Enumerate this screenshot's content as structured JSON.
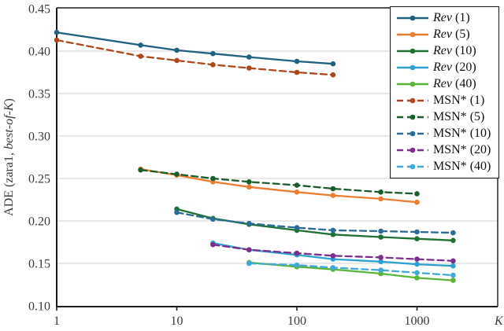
{
  "figure": {
    "background": "#ffffff",
    "frame_color": "#1a1a1a",
    "gridline_color": "#d9d9d9"
  },
  "chart_data": {
    "type": "line",
    "title": "",
    "xlabel": "K",
    "ylabel": "ADE (zara1, best-of-K)",
    "ylabel_parts": {
      "prefix": "ADE (zara1, ",
      "italic": "best-of-K",
      "suffix": ")"
    },
    "x_scale": "log",
    "xlim": [
      1,
      4700
    ],
    "ylim": [
      0.1,
      0.45
    ],
    "x_ticks": [
      1,
      10,
      100,
      1000
    ],
    "y_ticks": [
      0.45,
      0.4,
      0.35,
      0.3,
      0.25,
      0.2,
      0.15,
      0.1
    ],
    "grid": "horizontal",
    "legend_position": "upper right",
    "series": [
      {
        "name": "Rev (1)",
        "family": "Rev",
        "k_label": "(1)",
        "color": "#20617f",
        "dash": false,
        "x": [
          1,
          5,
          10,
          20,
          40,
          100,
          200
        ],
        "y": [
          0.422,
          0.407,
          0.401,
          0.397,
          0.393,
          0.388,
          0.385
        ]
      },
      {
        "name": "Rev (5)",
        "family": "Rev",
        "k_label": "(5)",
        "color": "#ed7d31",
        "dash": false,
        "x": [
          5,
          10,
          20,
          40,
          100,
          200,
          500,
          1000
        ],
        "y": [
          0.261,
          0.254,
          0.246,
          0.24,
          0.234,
          0.23,
          0.226,
          0.222
        ]
      },
      {
        "name": "Rev (10)",
        "family": "Rev",
        "k_label": "(10)",
        "color": "#1e7033",
        "dash": false,
        "x": [
          10,
          20,
          40,
          100,
          200,
          500,
          1000,
          2000
        ],
        "y": [
          0.214,
          0.203,
          0.196,
          0.189,
          0.184,
          0.181,
          0.179,
          0.177
        ]
      },
      {
        "name": "Rev (20)",
        "family": "Rev",
        "k_label": "(20)",
        "color": "#2da2d2",
        "dash": false,
        "x": [
          20,
          40,
          100,
          200,
          500,
          1000,
          2000
        ],
        "y": [
          0.174,
          0.166,
          0.16,
          0.155,
          0.152,
          0.149,
          0.147
        ]
      },
      {
        "name": "Rev (40)",
        "family": "Rev",
        "k_label": "(40)",
        "color": "#5ab438",
        "dash": false,
        "x": [
          40,
          100,
          200,
          500,
          1000,
          2000
        ],
        "y": [
          0.151,
          0.146,
          0.143,
          0.138,
          0.133,
          0.13
        ]
      },
      {
        "name": "MSN* (1)",
        "family": "MSN*",
        "k_label": "(1)",
        "color": "#b0461c",
        "dash": true,
        "x": [
          1,
          5,
          10,
          20,
          40,
          100,
          200
        ],
        "y": [
          0.413,
          0.394,
          0.389,
          0.384,
          0.38,
          0.375,
          0.372
        ]
      },
      {
        "name": "MSN* (5)",
        "family": "MSN*",
        "k_label": "(5)",
        "color": "#1a5c2a",
        "dash": true,
        "x": [
          5,
          10,
          20,
          40,
          100,
          200,
          500,
          1000
        ],
        "y": [
          0.26,
          0.255,
          0.25,
          0.246,
          0.242,
          0.238,
          0.234,
          0.232
        ]
      },
      {
        "name": "MSN* (10)",
        "family": "MSN*",
        "k_label": "(10)",
        "color": "#2a6b97",
        "dash": true,
        "x": [
          10,
          20,
          40,
          100,
          200,
          500,
          1000,
          2000
        ],
        "y": [
          0.21,
          0.202,
          0.197,
          0.192,
          0.189,
          0.188,
          0.187,
          0.186
        ]
      },
      {
        "name": "MSN* (20)",
        "family": "MSN*",
        "k_label": "(20)",
        "color": "#7d2e8d",
        "dash": true,
        "x": [
          20,
          40,
          100,
          200,
          500,
          1000,
          2000
        ],
        "y": [
          0.172,
          0.166,
          0.162,
          0.159,
          0.157,
          0.155,
          0.153
        ]
      },
      {
        "name": "MSN* (40)",
        "family": "MSN*",
        "k_label": "(40)",
        "color": "#3fa9dc",
        "dash": true,
        "x": [
          40,
          100,
          200,
          500,
          1000,
          2000
        ],
        "y": [
          0.15,
          0.148,
          0.145,
          0.142,
          0.139,
          0.136
        ]
      }
    ]
  }
}
